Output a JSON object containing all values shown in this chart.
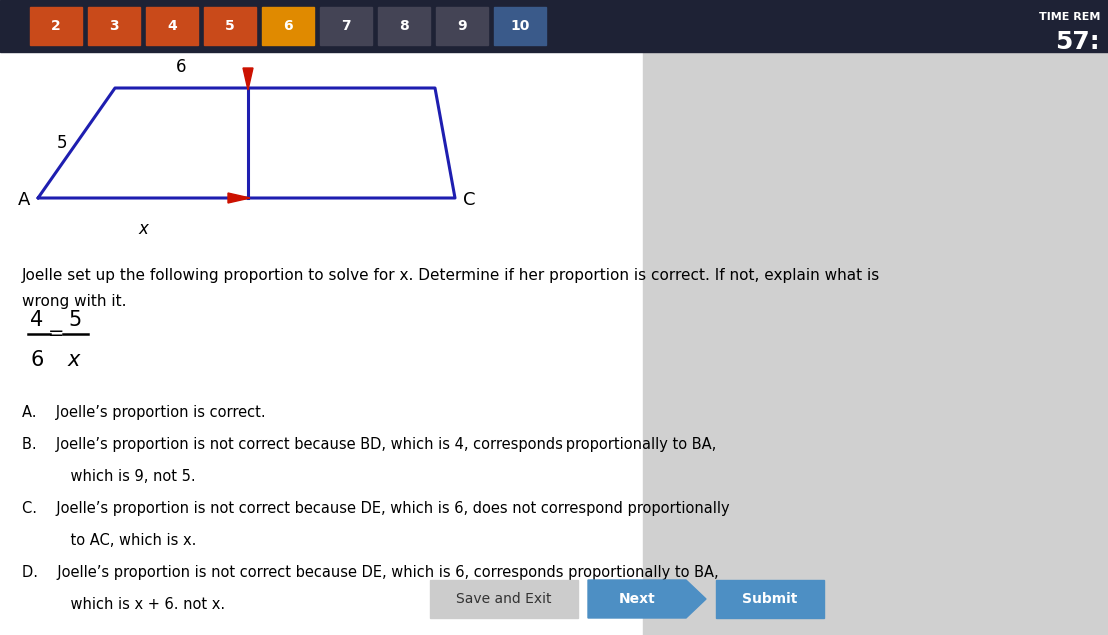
{
  "bg_top_color": "#1e2235",
  "bg_main_color": "#e4e4e4",
  "nav_labels": [
    "2",
    "3",
    "4",
    "5",
    "6",
    "7",
    "8",
    "9",
    "10"
  ],
  "nav_colors": [
    "#c94a1a",
    "#c94a1a",
    "#c94a1a",
    "#c94a1a",
    "#e08a00",
    "#444455",
    "#444455",
    "#444455",
    "#3a5a8a"
  ],
  "time_label": "TIME REM",
  "time_value": "57:",
  "tri_color": "#1e1eb0",
  "arrow_color": "#cc1100",
  "lw": 2.2,
  "label_A": "A",
  "label_C": "C",
  "label_x": "x",
  "label_5": "5",
  "label_6": "6",
  "q_line1": "Joelle set up the following proportion to solve for x. Determine if her proportion is correct. If not, explain what is",
  "q_line2": "wrong with it.",
  "opt_A": "A.  Joelle’s proportion is correct.",
  "opt_B1": "B.  Joelle’s proportion is not correct because BD, which is 4, corresponds proportionally to BA,",
  "opt_B2": "    which is 9, not 5.",
  "opt_C1": "C.  Joelle’s proportion is not correct because DE, which is 6, does not correspond proportionally",
  "opt_C2": "    to AC, which is x.",
  "opt_D1": "D.  Joelle’s proportion is not correct because DE, which is 6, corresponds proportionally to BA,",
  "opt_D2": "    which is x + 6. not x.",
  "btn_save": "Save and Exit",
  "btn_next": "Next",
  "btn_submit": "Submit",
  "btn_save_color": "#cccccc",
  "btn_next_color": "#4d8fc4",
  "btn_submit_color": "#4d8fc4"
}
